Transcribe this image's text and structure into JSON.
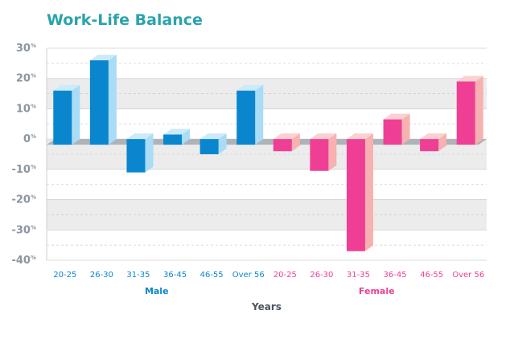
{
  "chart_data": {
    "type": "bar",
    "title": "Work-Life Balance",
    "xlabel": "Years",
    "ylabel": "",
    "ylim": [
      -40,
      30
    ],
    "yticks": [
      30,
      20,
      10,
      0,
      -10,
      -20,
      -30,
      -40
    ],
    "ytick_unit": "%",
    "grid": true,
    "groups": [
      {
        "name": "Male",
        "color": "#0a86cf",
        "side_color": "#a9dcf6",
        "categories": [
          "20-25",
          "26-30",
          "31-35",
          "36-45",
          "46-55",
          "Over 56"
        ],
        "values": [
          16,
          26,
          -11,
          1.5,
          -5,
          16
        ]
      },
      {
        "name": "Female",
        "color": "#ef3f95",
        "side_color": "#f7b1b0",
        "categories": [
          "20-25",
          "26-30",
          "31-35",
          "36-45",
          "46-55",
          "Over 56"
        ],
        "values": [
          -4,
          -10.5,
          -37,
          6.5,
          -4,
          19
        ]
      }
    ]
  },
  "colors": {
    "title": "#2aa3ad",
    "axis_text": "#8a96a0",
    "xlabel": "#4a5560",
    "band": "#ececec",
    "grid": "#cfcfcf"
  }
}
